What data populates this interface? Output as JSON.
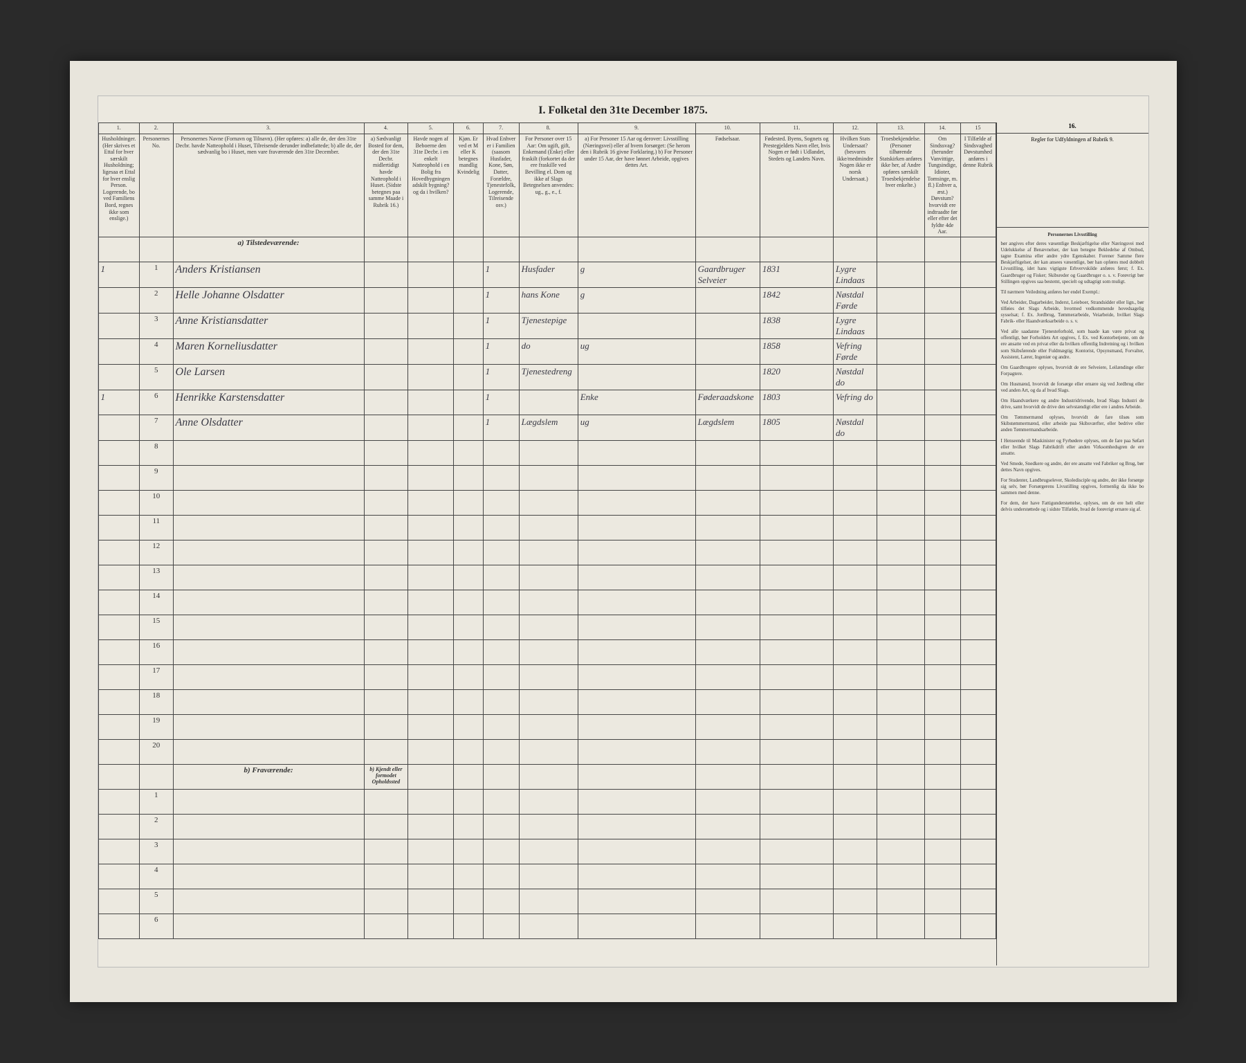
{
  "title": "I. Folketal den 31te December 1875.",
  "columns": {
    "nums": [
      "1.",
      "2.",
      "3.",
      "4.",
      "5.",
      "6.",
      "7.",
      "8.",
      "9.",
      "10.",
      "11.",
      "12.",
      "13.",
      "14.",
      "15",
      "16."
    ],
    "headers": [
      "Husholdninger. (Her skrives et Ettal for hver særskilt Husholdning; ligesaa et Ettal for hver enslig Person. Logerende, bo ved Familiens Bord, regnes ikke som enslige.)",
      "Personernes No.",
      "Personernes Navne (Fornavn og Tilnavn). (Her opføres: a) alle de, der den 31te Decbr. havde Natteophold i Huset, Tilreisende derunder indbefattede; b) alle de, der sædvanlig bo i Huset, men vare fraværende den 31te December.",
      "a) Sædvanligt Bosted for dem, der den 31te Decbr. midlertidigt havde Natteophold i Huset. (Sidste betegnes paa samme Maade i Rubrik 16.)",
      "Havde nogen af Beboerne den 31te Decbr. i en enkelt Natteophold i en Bolig fra Hovedbygningen adskilt bygning? og da i hvilken?",
      "Kjøn. Er ved et M eller K betegnes mandlig Kvindelig",
      "Hvad Enhver er i Familien (saasom Husfader, Kone, Søn, Datter, Forældre, Tjenestefolk, Logerende, Tilreisende osv.)",
      "For Personer over 15 Aar: Om ugift, gift, Enkemand (Enke) eller fraskilt (forkortet da der ere fraskille ved Bevilling el. Dom og ikke af Slags Betegnelsen anvendes: ug., g., e., f.",
      "a) For Personer 15 Aar og derover: Livsstilling (Næringsvei) eller af hvem forsørget: (Se herom den i Rubrik 16 givne Forklaring.) b) For Personer under 15 Aar, der have lønnet Arbeide, opgives dettes Art.",
      "Fødselsaar.",
      "Fødested. Byens, Sognets og Prestegjeldets Navn eller, hvis Nogen er født i Udlandet, Stedets og Landets Navn.",
      "Hvilken Stats Undersaat? (besvares ikke/medmindre Nogen ikke er norsk Undersaat.)",
      "Troesbekjendelse. (Personer tilhørende Statskirken anføres ikke her, af Andre opføres særskilt Troesbekjendelse hver enkelte.)",
      "Om Sindssvag? (herunder Vanvittige, Tungsindige, Idioter, Tomsinge, m. fl.) Enhver a, æst.) Døvstum? hvorvidt ere indtraadte før eller efter det fyldte 4de Aar.",
      "I Tilfælde af Sindsvaghed Døvstumhed anføres i denne Rubrik",
      "Regler for Udfyldningen af Rubrik 9."
    ]
  },
  "section_a": "a) Tilstedeværende:",
  "section_b": "b) Fraværende:",
  "section_b_col4": "b) Kjendt eller formodet Opholdssted",
  "rows": [
    {
      "h": "1",
      "n": "1",
      "name": "Anders Kristiansen",
      "c4": "",
      "c5": "",
      "c6": "",
      "c7": "1",
      "fam": "Husfader",
      "civ": "g",
      "occ": "Gaardbruger Selveier",
      "year": "1831",
      "place": "Lygre Lindaas"
    },
    {
      "h": "",
      "n": "2",
      "name": "Helle Johanne Olsdatter",
      "c4": "",
      "c5": "",
      "c6": "",
      "c7": "1",
      "fam": "hans Kone",
      "civ": "g",
      "occ": "",
      "year": "1842",
      "place": "Nøstdal Førde"
    },
    {
      "h": "",
      "n": "3",
      "name": "Anne Kristiansdatter",
      "c4": "",
      "c5": "",
      "c6": "",
      "c7": "1",
      "fam": "Tjenestepige",
      "civ": "",
      "occ": "",
      "year": "1838",
      "place": "Lygre Lindaas"
    },
    {
      "h": "",
      "n": "4",
      "name": "Maren Korneliusdatter",
      "c4": "",
      "c5": "",
      "c6": "",
      "c7": "1",
      "fam": "do",
      "civ": "ug",
      "occ": "",
      "year": "1858",
      "place": "Vefring Førde"
    },
    {
      "h": "",
      "n": "5",
      "name": "Ole Larsen",
      "c4": "",
      "c5": "",
      "c6": "",
      "c7": "1",
      "fam": "Tjenestedreng",
      "civ": "",
      "occ": "",
      "year": "1820",
      "place": "Nøstdal do"
    },
    {
      "h": "1",
      "n": "6",
      "name": "Henrikke Karstensdatter",
      "c4": "",
      "c5": "",
      "c6": "",
      "c7": "1",
      "fam": "",
      "civ": "Enke",
      "occ": "Føderaadskone",
      "year": "1803",
      "place": "Vefring do"
    },
    {
      "h": "",
      "n": "7",
      "name": "Anne Olsdatter",
      "c4": "",
      "c5": "",
      "c6": "",
      "c7": "1",
      "fam": "Lægdslem",
      "civ": "ug",
      "occ": "Lægdslem",
      "year": "1805",
      "place": "Nøstdal do"
    }
  ],
  "empty_rows_a": [
    "8",
    "9",
    "10",
    "11",
    "12",
    "13",
    "14",
    "15",
    "16",
    "17",
    "18",
    "19",
    "20"
  ],
  "empty_rows_b": [
    "1",
    "2",
    "3",
    "4",
    "5",
    "6"
  ],
  "instructions": {
    "heading": "Personernes Livsstilling",
    "paragraphs": [
      "bør angives efter deres væsentlige Beskjæftigelse eller Næringsvei med Udelukkelse af Benævnelser, der kun betegne Bekledelse af Ombud, tagne Examina eller andre ydre Egenskaber. Forener Samme flere Beskjæftigelser, der kan ansees væsentlige, bør han opføres med dobbelt Livsstilling, idet hans vigtigste Erhvervskilde anføres først; f. Ex. Gaardbruger og Fisker; Skibsreder og Gaardbruger o. s. v. Forøvrigt bør Stillingen opgives saa bestemt, specielt og udtagtigt som muligt.",
      "Til nærmere Veiledning anføres her endel Exempl.:",
      "Ved Arbeider, Dagarbeider, Inderst, Leieboer, Strandsidder eller lign., bør tilføies det Slags Arbeide, hvormed vedkommende hovedsagelig sysselsat; f. Ex. Jordbrug, Tømmerarbeide, Veiarbeide, hvilket Slags Fabrik- eller Haandværksarbeide o. s. v.",
      "Ved alle saadanne Tjenesteforhold, som baade kan være privat og offentligt, bør Forholdets Art opgives, f. Ex. ved Kontorbetjente, om de ere ansatte ved en privat eller da hvilken offentlig Indretning og i hvilken som Skibsførende eller Fuldmægtig; Kontorist, Opsynsmand, Forvalter, Assistent, Lærer, Ingeniør og andre.",
      "Om Gaardbrugere oplyses, hvorvidt de ere Selveiere, Leilændinge eller Forpagtere.",
      "Om Husmænd, hvorvidt de forsørge eller ernære sig ved Jordbrug eller ved anden Art, og da af hvad Slags.",
      "Om Haandværkere og andre Industridrivende, hvad Slags Industri de drive, samt hvorvidt de drive den selvstændigt eller ere i andres Arbeide.",
      "Om Tømmermænd oplyses, hvorvidt de fare tilsøs som Skibstømmermænd, eller arbeide paa Skibsværfter, eller bedrive eller anden Tømmermandsarbeide.",
      "I Henseende til Maskinister og Fyrbødere oplyses, om de fare paa Søfart eller hvilket Slags Fabrikdrift eller anden Virksomhedsgren de ere ansatte.",
      "Ved Smede, Snedkere og andre, der ere ansatte ved Fabriker og Brug, bør dettes Navn opgives.",
      "For Studenter, Landbrugselever, Skoledisciple og andre, der ikke forsørge sig selv, bør Forsørgerens Livsstilling opgives, formenlig da ikke bo sammen med denne.",
      "For dem, der have Fattigunderstøttelse, oplyses, om de ere helt eller delvis understøttede og i sidste Tilfælde, hvad de forøvrigt ernære sig af."
    ]
  }
}
